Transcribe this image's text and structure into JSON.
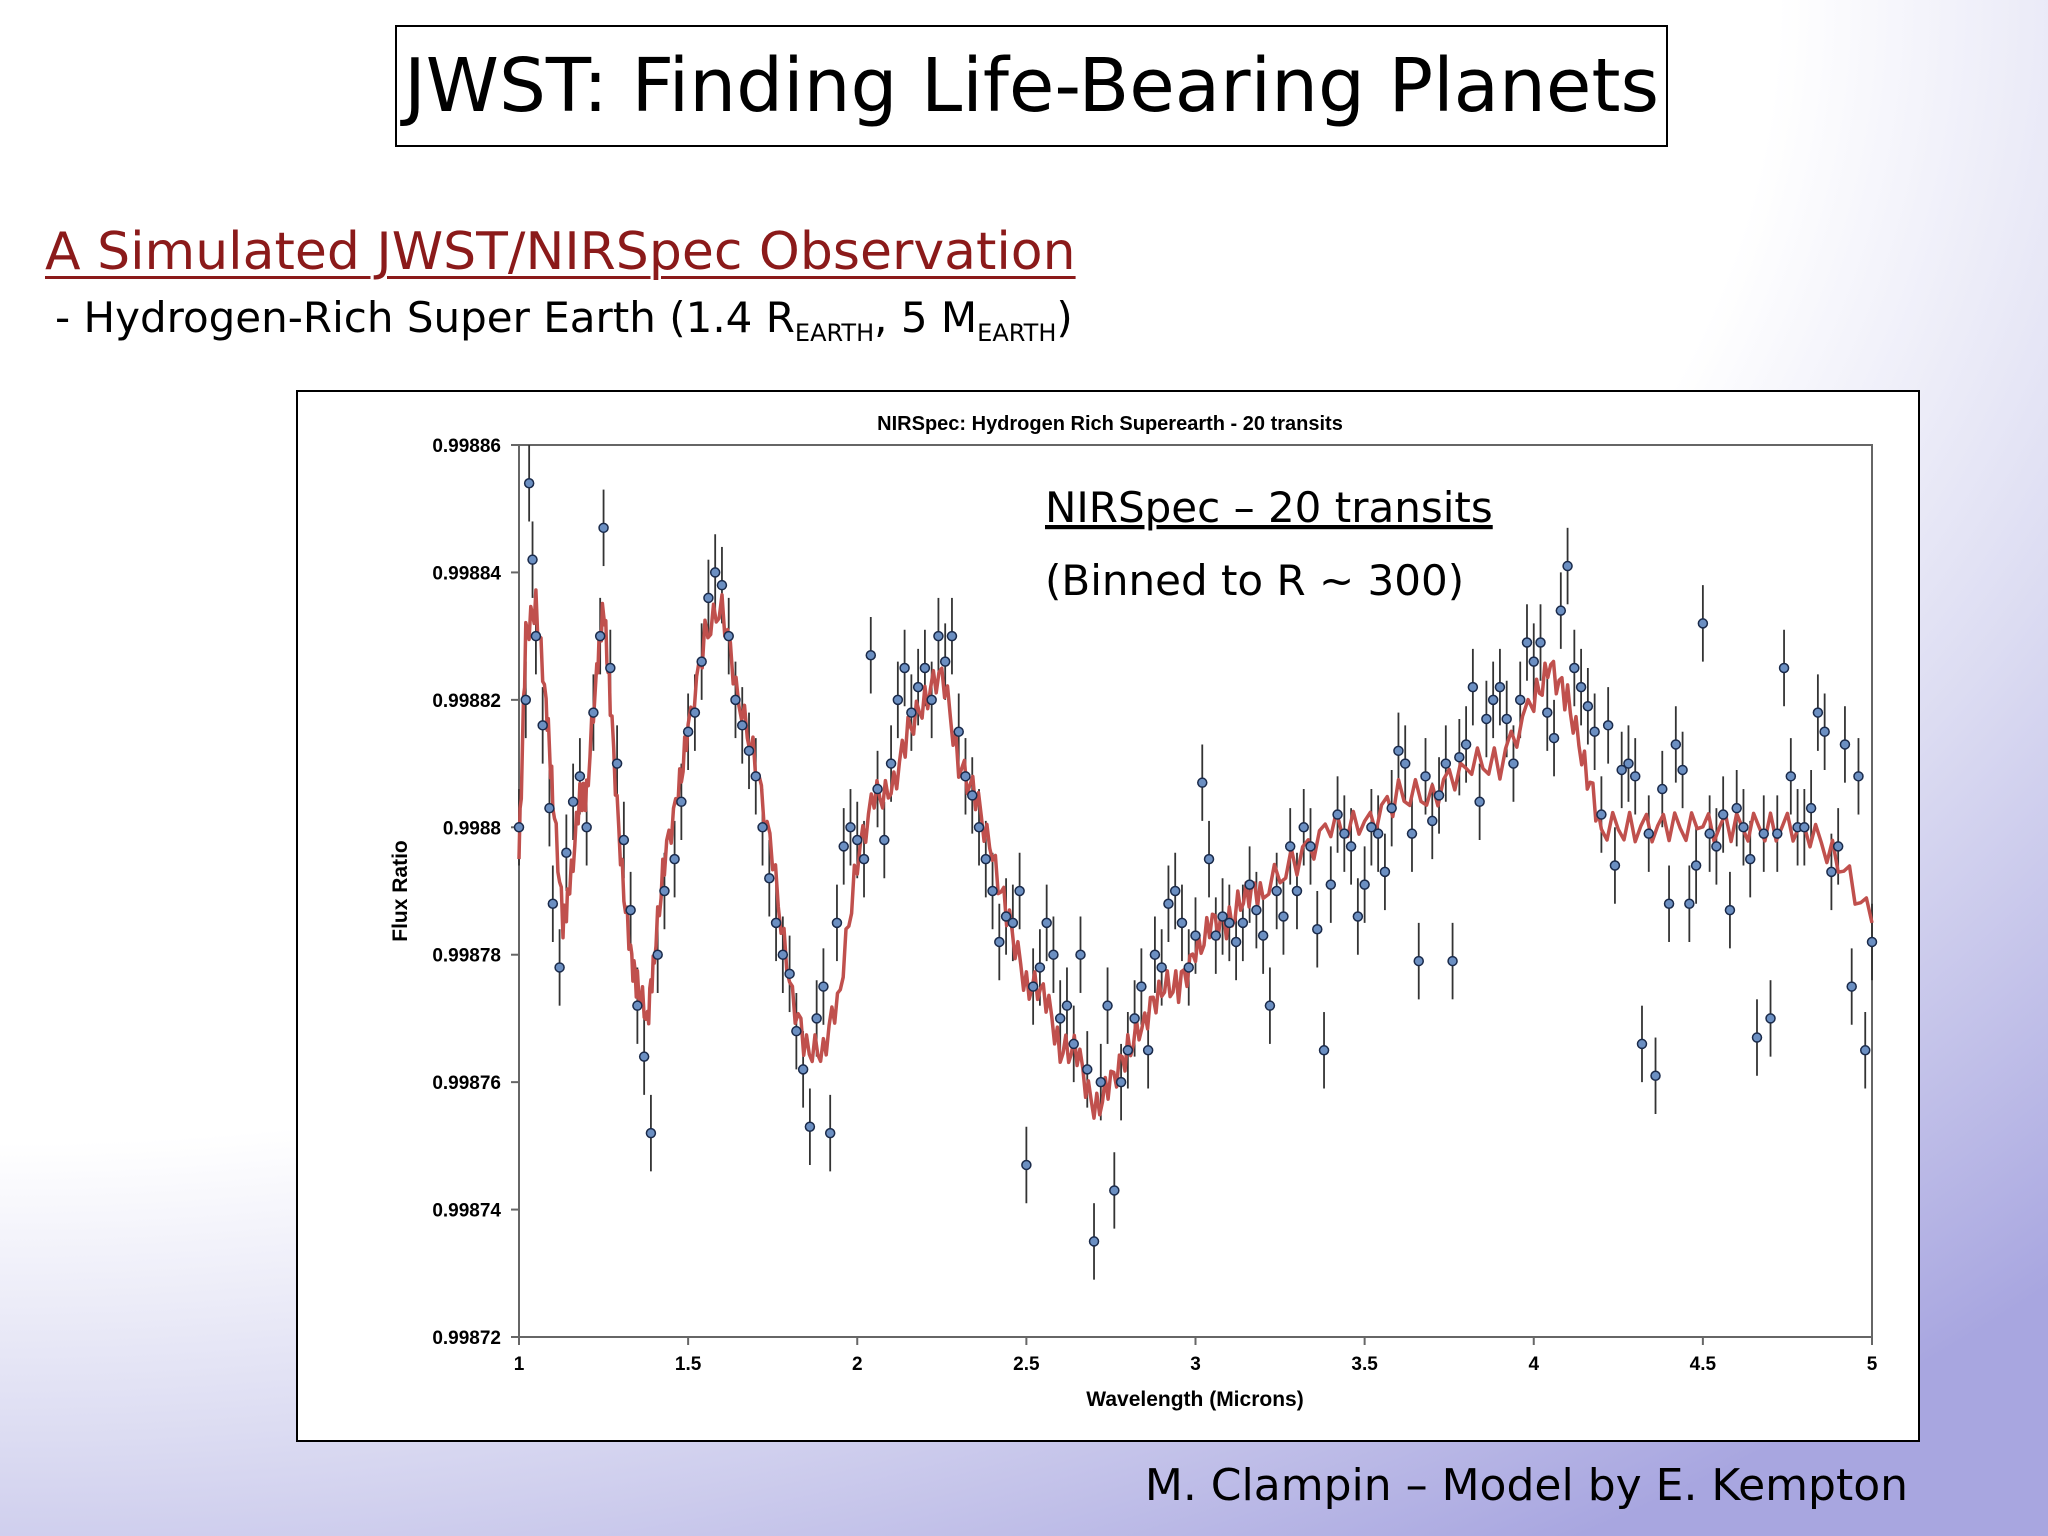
{
  "slide": {
    "title": "JWST: Finding Life-Bearing Planets",
    "subtitle": "A Simulated JWST/NIRSpec Observation",
    "description": {
      "prefix": "- Hydrogen-Rich Super Earth (1.4 R",
      "sub1": "EARTH",
      "middle": ", 5 M",
      "sub2": "EARTH",
      "suffix": ")"
    },
    "credit": "M. Clampin – Model by E. Kempton"
  },
  "chart_data": {
    "type": "scatter",
    "title": "NIRSpec: Hydrogen Rich Superearth - 20 transits",
    "xlabel": "Wavelength (Microns)",
    "ylabel": "Flux Ratio",
    "xlim": [
      1,
      5
    ],
    "ylim": [
      0.99872,
      0.99886
    ],
    "x_ticks": [
      "1",
      "1.5",
      "2",
      "2.5",
      "3",
      "3.5",
      "4",
      "4.5",
      "5"
    ],
    "y_ticks": [
      "0.99886",
      "0.99884",
      "0.99882",
      "0.9988",
      "0.99878",
      "0.99876",
      "0.99874",
      "0.99872"
    ],
    "grid": false,
    "annotations": [
      "NIRSpec – 20 transits",
      "(Binned to R ~ 300)"
    ],
    "colors": {
      "model": "#c0504d",
      "points": "#6b8fc2",
      "errorbars": "#333333"
    },
    "model_points": [
      [
        1.0,
        0.998795
      ],
      [
        1.02,
        0.99883
      ],
      [
        1.05,
        0.998835
      ],
      [
        1.08,
        0.99882
      ],
      [
        1.1,
        0.998805
      ],
      [
        1.13,
        0.998785
      ],
      [
        1.15,
        0.99879
      ],
      [
        1.18,
        0.998805
      ],
      [
        1.2,
        0.998805
      ],
      [
        1.23,
        0.998825
      ],
      [
        1.25,
        0.998835
      ],
      [
        1.27,
        0.99882
      ],
      [
        1.3,
        0.998795
      ],
      [
        1.33,
        0.99878
      ],
      [
        1.35,
        0.998775
      ],
      [
        1.38,
        0.99877
      ],
      [
        1.4,
        0.99878
      ],
      [
        1.43,
        0.998795
      ],
      [
        1.47,
        0.998805
      ],
      [
        1.5,
        0.998815
      ],
      [
        1.55,
        0.99883
      ],
      [
        1.6,
        0.998835
      ],
      [
        1.65,
        0.99882
      ],
      [
        1.7,
        0.99881
      ],
      [
        1.75,
        0.998795
      ],
      [
        1.8,
        0.998775
      ],
      [
        1.85,
        0.998765
      ],
      [
        1.9,
        0.998765
      ],
      [
        1.95,
        0.998775
      ],
      [
        2.0,
        0.998795
      ],
      [
        2.05,
        0.998805
      ],
      [
        2.1,
        0.998805
      ],
      [
        2.15,
        0.998815
      ],
      [
        2.2,
        0.99882
      ],
      [
        2.25,
        0.998825
      ],
      [
        2.3,
        0.99881
      ],
      [
        2.35,
        0.998805
      ],
      [
        2.4,
        0.998795
      ],
      [
        2.45,
        0.998785
      ],
      [
        2.5,
        0.998775
      ],
      [
        2.55,
        0.998775
      ],
      [
        2.6,
        0.998765
      ],
      [
        2.65,
        0.998765
      ],
      [
        2.7,
        0.998755
      ],
      [
        2.75,
        0.99876
      ],
      [
        2.8,
        0.998765
      ],
      [
        2.85,
        0.99877
      ],
      [
        2.9,
        0.998775
      ],
      [
        2.95,
        0.998775
      ],
      [
        3.0,
        0.99878
      ],
      [
        3.05,
        0.998785
      ],
      [
        3.1,
        0.998785
      ],
      [
        3.15,
        0.99879
      ],
      [
        3.2,
        0.99879
      ],
      [
        3.3,
        0.998795
      ],
      [
        3.4,
        0.9988
      ],
      [
        3.5,
        0.9988
      ],
      [
        3.6,
        0.998805
      ],
      [
        3.7,
        0.998805
      ],
      [
        3.8,
        0.99881
      ],
      [
        3.9,
        0.99881
      ],
      [
        4.0,
        0.99882
      ],
      [
        4.05,
        0.998825
      ],
      [
        4.1,
        0.99882
      ],
      [
        4.15,
        0.99881
      ],
      [
        4.2,
        0.9988
      ],
      [
        4.3,
        0.9988
      ],
      [
        4.4,
        0.9988
      ],
      [
        4.5,
        0.9988
      ],
      [
        4.6,
        0.9988
      ],
      [
        4.7,
        0.9988
      ],
      [
        4.8,
        0.9988
      ],
      [
        4.9,
        0.998795
      ],
      [
        5.0,
        0.998785
      ]
    ],
    "observed": [
      [
        1.0,
        0.9988,
        6e-06
      ],
      [
        1.02,
        0.99882,
        6e-06
      ],
      [
        1.03,
        0.998854,
        6e-06
      ],
      [
        1.04,
        0.998842,
        6e-06
      ],
      [
        1.05,
        0.99883,
        6e-06
      ],
      [
        1.07,
        0.998816,
        6e-06
      ],
      [
        1.09,
        0.998803,
        6e-06
      ],
      [
        1.1,
        0.998788,
        6e-06
      ],
      [
        1.12,
        0.998778,
        6e-06
      ],
      [
        1.14,
        0.998796,
        6e-06
      ],
      [
        1.16,
        0.998804,
        6e-06
      ],
      [
        1.18,
        0.998808,
        6e-06
      ],
      [
        1.2,
        0.9988,
        6e-06
      ],
      [
        1.22,
        0.998818,
        6e-06
      ],
      [
        1.24,
        0.99883,
        6e-06
      ],
      [
        1.25,
        0.998847,
        6e-06
      ],
      [
        1.27,
        0.998825,
        6e-06
      ],
      [
        1.29,
        0.99881,
        6e-06
      ],
      [
        1.31,
        0.998798,
        6e-06
      ],
      [
        1.33,
        0.998787,
        6e-06
      ],
      [
        1.35,
        0.998772,
        6e-06
      ],
      [
        1.37,
        0.998764,
        6e-06
      ],
      [
        1.39,
        0.998752,
        6e-06
      ],
      [
        1.41,
        0.99878,
        6e-06
      ],
      [
        1.43,
        0.99879,
        6e-06
      ],
      [
        1.46,
        0.998795,
        6e-06
      ],
      [
        1.48,
        0.998804,
        6e-06
      ],
      [
        1.5,
        0.998815,
        6e-06
      ],
      [
        1.52,
        0.998818,
        6e-06
      ],
      [
        1.54,
        0.998826,
        6e-06
      ],
      [
        1.56,
        0.998836,
        6e-06
      ],
      [
        1.58,
        0.99884,
        6e-06
      ],
      [
        1.6,
        0.998838,
        6e-06
      ],
      [
        1.62,
        0.99883,
        6e-06
      ],
      [
        1.64,
        0.99882,
        6e-06
      ],
      [
        1.66,
        0.998816,
        6e-06
      ],
      [
        1.68,
        0.998812,
        6e-06
      ],
      [
        1.7,
        0.998808,
        6e-06
      ],
      [
        1.72,
        0.9988,
        6e-06
      ],
      [
        1.74,
        0.998792,
        6e-06
      ],
      [
        1.76,
        0.998785,
        6e-06
      ],
      [
        1.78,
        0.99878,
        6e-06
      ],
      [
        1.8,
        0.998777,
        6e-06
      ],
      [
        1.82,
        0.998768,
        6e-06
      ],
      [
        1.84,
        0.998762,
        6e-06
      ],
      [
        1.86,
        0.998753,
        6e-06
      ],
      [
        1.88,
        0.99877,
        6e-06
      ],
      [
        1.9,
        0.998775,
        6e-06
      ],
      [
        1.92,
        0.998752,
        6e-06
      ],
      [
        1.94,
        0.998785,
        6e-06
      ],
      [
        1.96,
        0.998797,
        6e-06
      ],
      [
        1.98,
        0.9988,
        6e-06
      ],
      [
        2.0,
        0.998798,
        6e-06
      ],
      [
        2.02,
        0.998795,
        6e-06
      ],
      [
        2.04,
        0.998827,
        6e-06
      ],
      [
        2.06,
        0.998806,
        6e-06
      ],
      [
        2.08,
        0.998798,
        6e-06
      ],
      [
        2.1,
        0.99881,
        6e-06
      ],
      [
        2.12,
        0.99882,
        6e-06
      ],
      [
        2.14,
        0.998825,
        6e-06
      ],
      [
        2.16,
        0.998818,
        6e-06
      ],
      [
        2.18,
        0.998822,
        6e-06
      ],
      [
        2.2,
        0.998825,
        6e-06
      ],
      [
        2.22,
        0.99882,
        6e-06
      ],
      [
        2.24,
        0.99883,
        6e-06
      ],
      [
        2.26,
        0.998826,
        6e-06
      ],
      [
        2.28,
        0.99883,
        6e-06
      ],
      [
        2.3,
        0.998815,
        6e-06
      ],
      [
        2.32,
        0.998808,
        6e-06
      ],
      [
        2.34,
        0.998805,
        6e-06
      ],
      [
        2.36,
        0.9988,
        6e-06
      ],
      [
        2.38,
        0.998795,
        6e-06
      ],
      [
        2.4,
        0.99879,
        6e-06
      ],
      [
        2.42,
        0.998782,
        6e-06
      ],
      [
        2.44,
        0.998786,
        6e-06
      ],
      [
        2.46,
        0.998785,
        6e-06
      ],
      [
        2.48,
        0.99879,
        6e-06
      ],
      [
        2.5,
        0.998747,
        6e-06
      ],
      [
        2.52,
        0.998775,
        6e-06
      ],
      [
        2.54,
        0.998778,
        6e-06
      ],
      [
        2.56,
        0.998785,
        6e-06
      ],
      [
        2.58,
        0.99878,
        6e-06
      ],
      [
        2.6,
        0.99877,
        6e-06
      ],
      [
        2.62,
        0.998772,
        6e-06
      ],
      [
        2.64,
        0.998766,
        6e-06
      ],
      [
        2.66,
        0.99878,
        6e-06
      ],
      [
        2.68,
        0.998762,
        6e-06
      ],
      [
        2.7,
        0.998735,
        6e-06
      ],
      [
        2.72,
        0.99876,
        6e-06
      ],
      [
        2.74,
        0.998772,
        6e-06
      ],
      [
        2.76,
        0.998743,
        6e-06
      ],
      [
        2.78,
        0.99876,
        6e-06
      ],
      [
        2.8,
        0.998765,
        6e-06
      ],
      [
        2.82,
        0.99877,
        6e-06
      ],
      [
        2.84,
        0.998775,
        6e-06
      ],
      [
        2.86,
        0.998765,
        6e-06
      ],
      [
        2.88,
        0.99878,
        6e-06
      ],
      [
        2.9,
        0.998778,
        6e-06
      ],
      [
        2.92,
        0.998788,
        6e-06
      ],
      [
        2.94,
        0.99879,
        6e-06
      ],
      [
        2.96,
        0.998785,
        6e-06
      ],
      [
        2.98,
        0.998778,
        6e-06
      ],
      [
        3.0,
        0.998783,
        6e-06
      ],
      [
        3.02,
        0.998807,
        6e-06
      ],
      [
        3.04,
        0.998795,
        6e-06
      ],
      [
        3.06,
        0.998783,
        6e-06
      ],
      [
        3.08,
        0.998786,
        6e-06
      ],
      [
        3.1,
        0.998785,
        6e-06
      ],
      [
        3.12,
        0.998782,
        6e-06
      ],
      [
        3.14,
        0.998785,
        6e-06
      ],
      [
        3.16,
        0.998791,
        6e-06
      ],
      [
        3.18,
        0.998787,
        6e-06
      ],
      [
        3.2,
        0.998783,
        6e-06
      ],
      [
        3.22,
        0.998772,
        6e-06
      ],
      [
        3.24,
        0.99879,
        6e-06
      ],
      [
        3.26,
        0.998786,
        6e-06
      ],
      [
        3.28,
        0.998797,
        6e-06
      ],
      [
        3.3,
        0.99879,
        6e-06
      ],
      [
        3.32,
        0.9988,
        6e-06
      ],
      [
        3.34,
        0.998797,
        6e-06
      ],
      [
        3.36,
        0.998784,
        6e-06
      ],
      [
        3.38,
        0.998765,
        6e-06
      ],
      [
        3.4,
        0.998791,
        6e-06
      ],
      [
        3.42,
        0.998802,
        6e-06
      ],
      [
        3.44,
        0.998799,
        6e-06
      ],
      [
        3.46,
        0.998797,
        6e-06
      ],
      [
        3.48,
        0.998786,
        6e-06
      ],
      [
        3.5,
        0.998791,
        6e-06
      ],
      [
        3.52,
        0.9988,
        6e-06
      ],
      [
        3.54,
        0.998799,
        6e-06
      ],
      [
        3.56,
        0.998793,
        6e-06
      ],
      [
        3.58,
        0.998803,
        6e-06
      ],
      [
        3.6,
        0.998812,
        6e-06
      ],
      [
        3.62,
        0.99881,
        6e-06
      ],
      [
        3.64,
        0.998799,
        6e-06
      ],
      [
        3.66,
        0.998779,
        6e-06
      ],
      [
        3.68,
        0.998808,
        6e-06
      ],
      [
        3.7,
        0.998801,
        6e-06
      ],
      [
        3.72,
        0.998805,
        6e-06
      ],
      [
        3.74,
        0.99881,
        6e-06
      ],
      [
        3.76,
        0.998779,
        6e-06
      ],
      [
        3.78,
        0.998811,
        6e-06
      ],
      [
        3.8,
        0.998813,
        6e-06
      ],
      [
        3.82,
        0.998822,
        6e-06
      ],
      [
        3.84,
        0.998804,
        6e-06
      ],
      [
        3.86,
        0.998817,
        6e-06
      ],
      [
        3.88,
        0.99882,
        6e-06
      ],
      [
        3.9,
        0.998822,
        6e-06
      ],
      [
        3.92,
        0.998817,
        6e-06
      ],
      [
        3.94,
        0.99881,
        6e-06
      ],
      [
        3.96,
        0.99882,
        6e-06
      ],
      [
        3.98,
        0.998829,
        6e-06
      ],
      [
        4.0,
        0.998826,
        6e-06
      ],
      [
        4.02,
        0.998829,
        6e-06
      ],
      [
        4.04,
        0.998818,
        6e-06
      ],
      [
        4.06,
        0.998814,
        6e-06
      ],
      [
        4.08,
        0.998834,
        6e-06
      ],
      [
        4.1,
        0.998841,
        6e-06
      ],
      [
        4.12,
        0.998825,
        6e-06
      ],
      [
        4.14,
        0.998822,
        6e-06
      ],
      [
        4.16,
        0.998819,
        6e-06
      ],
      [
        4.18,
        0.998815,
        6e-06
      ],
      [
        4.2,
        0.998802,
        6e-06
      ],
      [
        4.22,
        0.998816,
        6e-06
      ],
      [
        4.24,
        0.998794,
        6e-06
      ],
      [
        4.26,
        0.998809,
        6e-06
      ],
      [
        4.28,
        0.99881,
        6e-06
      ],
      [
        4.3,
        0.998808,
        6e-06
      ],
      [
        4.32,
        0.998766,
        6e-06
      ],
      [
        4.34,
        0.998799,
        6e-06
      ],
      [
        4.36,
        0.998761,
        6e-06
      ],
      [
        4.38,
        0.998806,
        6e-06
      ],
      [
        4.4,
        0.998788,
        6e-06
      ],
      [
        4.42,
        0.998813,
        6e-06
      ],
      [
        4.44,
        0.998809,
        6e-06
      ],
      [
        4.46,
        0.998788,
        6e-06
      ],
      [
        4.48,
        0.998794,
        6e-06
      ],
      [
        4.5,
        0.998832,
        6e-06
      ],
      [
        4.52,
        0.998799,
        6e-06
      ],
      [
        4.54,
        0.998797,
        6e-06
      ],
      [
        4.56,
        0.998802,
        6e-06
      ],
      [
        4.58,
        0.998787,
        6e-06
      ],
      [
        4.6,
        0.998803,
        6e-06
      ],
      [
        4.62,
        0.9988,
        6e-06
      ],
      [
        4.64,
        0.998795,
        6e-06
      ],
      [
        4.66,
        0.998767,
        6e-06
      ],
      [
        4.68,
        0.998799,
        6e-06
      ],
      [
        4.7,
        0.99877,
        6e-06
      ],
      [
        4.72,
        0.998799,
        6e-06
      ],
      [
        4.74,
        0.998825,
        6e-06
      ],
      [
        4.76,
        0.998808,
        6e-06
      ],
      [
        4.78,
        0.9988,
        6e-06
      ],
      [
        4.8,
        0.9988,
        6e-06
      ],
      [
        4.82,
        0.998803,
        6e-06
      ],
      [
        4.84,
        0.998818,
        6e-06
      ],
      [
        4.86,
        0.998815,
        6e-06
      ],
      [
        4.88,
        0.998793,
        6e-06
      ],
      [
        4.9,
        0.998797,
        6e-06
      ],
      [
        4.92,
        0.998813,
        6e-06
      ],
      [
        4.94,
        0.998775,
        6e-06
      ],
      [
        4.96,
        0.998808,
        6e-06
      ],
      [
        4.98,
        0.998765,
        6e-06
      ],
      [
        5.0,
        0.998782,
        6e-06
      ]
    ]
  }
}
